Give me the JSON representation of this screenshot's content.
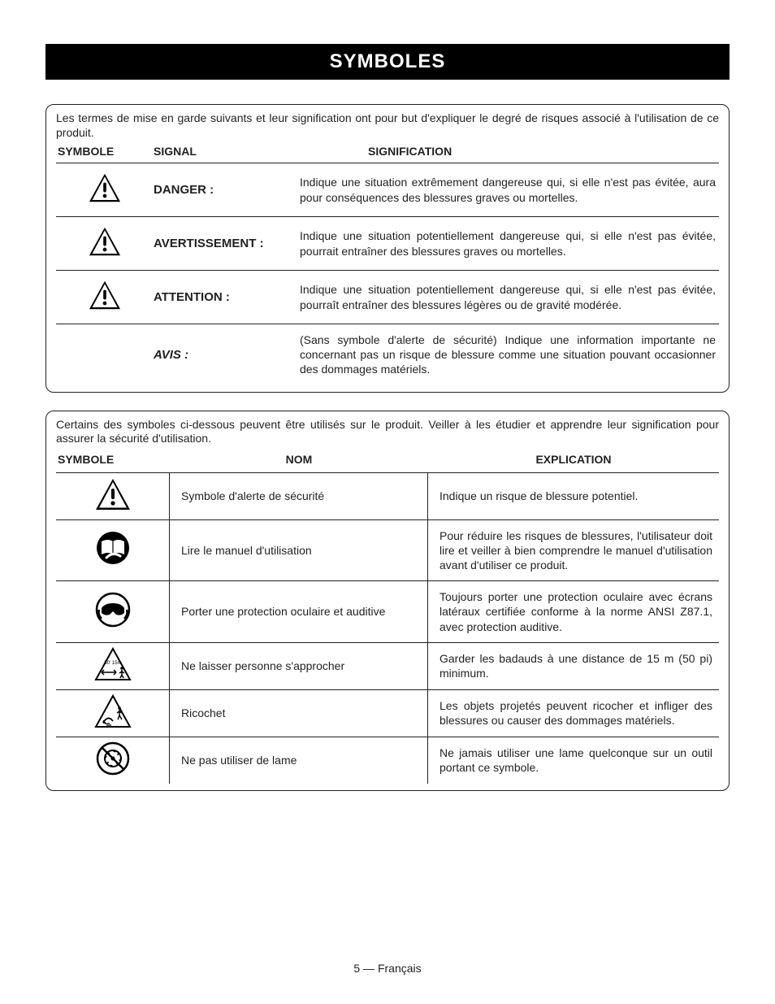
{
  "title": "SYMBOLES",
  "colors": {
    "text": "#231f20",
    "bg": "#ffffff",
    "titlebar_bg": "#000000",
    "titlebar_text": "#ffffff",
    "border": "#231f20"
  },
  "footer": "5 — Français",
  "panel1": {
    "intro": "Les termes de mise en garde suivants et leur signification ont pour but d'expliquer le degré de risques associé à l'utilisation de ce produit.",
    "headers": {
      "symbole": "SYMBOLE",
      "signal": "SIGNAL",
      "signification": "SIGNIFICATION"
    },
    "rows": [
      {
        "icon": "alert-triangle",
        "signal": "DANGER :",
        "italic": false,
        "signification": "Indique une situation extrêmement dangereuse qui, si elle n'est pas évitée, aura pour conséquences des blessures graves ou mortelles."
      },
      {
        "icon": "alert-triangle",
        "signal": "AVERTISSEMENT :",
        "italic": false,
        "signification": "Indique une situation potentiellement dangereuse qui, si elle n'est pas évitée, pourrait entraîner des blessures graves ou mortelles."
      },
      {
        "icon": "alert-triangle",
        "signal": "ATTENTION :",
        "italic": false,
        "signification": "Indique une situation potentiellement dangereuse qui, si elle n'est pas évitée, pourraît entraîner des blessures légères ou de gravité modérée."
      },
      {
        "icon": "",
        "signal": "AVIS :",
        "italic": true,
        "signification": "(Sans symbole d'alerte de sécurité) Indique une information importante ne concernant pas un risque de blessure comme une situation pouvant occasionner des dommages matériels."
      }
    ]
  },
  "panel2": {
    "intro": "Certains des symboles ci-dessous peuvent être utilisés sur le produit. Veiller à les étudier et apprendre leur signification pour assurer la sécurité d'utilisation.",
    "headers": {
      "symbole": "SYMBOLE",
      "nom": "NOM",
      "explication": "EXPLICATION"
    },
    "rows": [
      {
        "icon": "alert-triangle",
        "nom": "Symbole d'alerte de sécurité",
        "explication": "Indique un risque de blessure potentiel."
      },
      {
        "icon": "read-manual",
        "nom": "Lire le manuel d'utilisation",
        "explication": "Pour réduire les risques de blessures, l'utilisateur doit lire et veiller à bien comprendre le manuel d'utilisation avant d'utiliser ce produit."
      },
      {
        "icon": "eye-ear-protection",
        "nom": "Porter une protection oculaire et auditive",
        "explication": "Toujours porter une protection oculaire avec écrans latéraux certifiée conforme à la norme ANSI Z87.1, avec protection auditive."
      },
      {
        "icon": "keep-away",
        "nom": "Ne laisser personne s'approcher",
        "explication": "Garder les badauds à une distance de 15 m (50 pi) minimum."
      },
      {
        "icon": "ricochet",
        "nom": "Ricochet",
        "explication": "Les objets projetés peuvent ricocher et infliger des blessures ou causer des dommages matériels."
      },
      {
        "icon": "no-blade",
        "nom": "Ne pas utiliser de lame",
        "explication": "Ne jamais utiliser une lame quelconque sur un outil portant ce symbole."
      }
    ]
  },
  "icons": {
    "alert-triangle": "triangle",
    "read-manual": "manual",
    "eye-ear-protection": "goggles",
    "keep-away": "distance",
    "ricochet": "ricochet",
    "no-blade": "noblade"
  }
}
